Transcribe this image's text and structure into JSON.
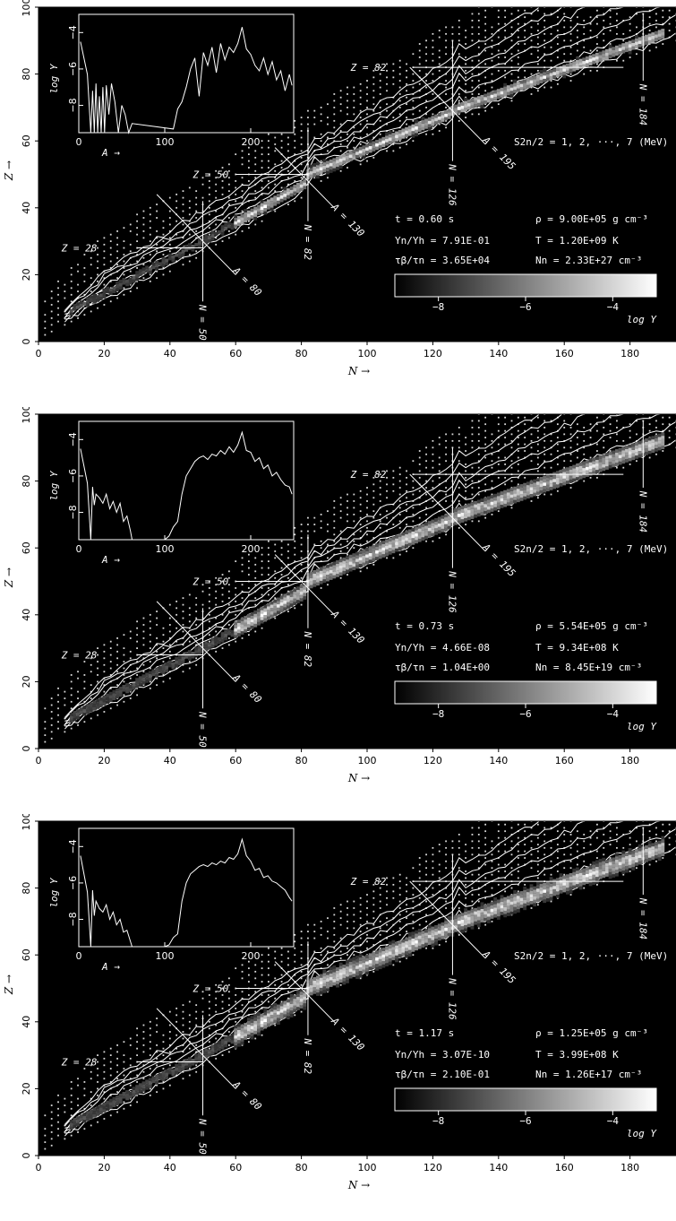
{
  "chart_data": [
    {
      "type": "heatmap",
      "xlabel": "N →",
      "ylabel": "Z →",
      "xlim": [
        0,
        194
      ],
      "ylim": [
        0,
        100
      ],
      "xticks": [
        "0",
        "20",
        "40",
        "60",
        "80",
        "100",
        "120",
        "140",
        "160",
        "180"
      ],
      "yticks": [
        "0",
        "20",
        "40",
        "60",
        "80",
        "100"
      ],
      "magic_labels": [
        "Z = 28",
        "Z = 50",
        "Z = 82",
        "N = 50",
        "N = 82",
        "N = 126",
        "N = 184",
        "A = 80",
        "A = 130",
        "A = 195"
      ],
      "s2n_label": "S2n/2 = 1, 2, ···, 7 (MeV)",
      "colorbar": {
        "label": "log Y",
        "ticks": [
          "−8",
          "−6",
          "−4"
        ],
        "range": [
          -9,
          -3
        ]
      },
      "params": {
        "t": "t = 0.60 s",
        "ratio": "Yn/Yh = 7.91E-01",
        "tau": "τβ/τn = 3.65E+04",
        "rho": "ρ = 9.00E+05 g cm⁻³",
        "T": "T = 1.20E+09 K",
        "Nn": "Nn = 2.33E+27 cm⁻³"
      },
      "abundance_spread": 2,
      "inset": {
        "xlabel": "A →",
        "ylabel": "log Y",
        "xticks": [
          "0",
          "100",
          "200"
        ],
        "yticks": [
          "−4",
          "−6",
          "−8"
        ],
        "xlim": [
          0,
          250
        ],
        "ylim": [
          -9.5,
          -3
        ],
        "A": [
          2,
          10,
          14,
          16,
          18,
          20,
          22,
          24,
          26,
          28,
          30,
          32,
          35,
          38,
          42,
          46,
          50,
          54,
          58,
          62,
          110,
          115,
          120,
          125,
          130,
          135,
          140,
          145,
          150,
          155,
          160,
          165,
          170,
          175,
          180,
          185,
          190,
          195,
          200,
          205,
          210,
          215,
          220,
          225,
          230,
          235,
          240,
          245,
          248
        ],
        "logY": [
          -4.5,
          -6.3,
          -9.5,
          -7.2,
          -9.5,
          -6.8,
          -9.5,
          -7.5,
          -9.5,
          -7.0,
          -9.5,
          -6.9,
          -8.5,
          -6.8,
          -7.8,
          -9.5,
          -8.0,
          -8.5,
          -9.5,
          -9.0,
          -9.3,
          -8.2,
          -7.8,
          -7.0,
          -6.0,
          -5.4,
          -7.5,
          -5.1,
          -5.8,
          -4.8,
          -6.2,
          -4.6,
          -5.5,
          -4.8,
          -5.1,
          -4.6,
          -3.7,
          -4.9,
          -5.2,
          -5.8,
          -6.1,
          -5.4,
          -6.3,
          -5.6,
          -6.6,
          -6.1,
          -7.2,
          -6.3,
          -6.9
        ]
      }
    },
    {
      "type": "heatmap",
      "xlabel": "N →",
      "ylabel": "Z →",
      "xlim": [
        0,
        194
      ],
      "ylim": [
        0,
        100
      ],
      "xticks": [
        "0",
        "20",
        "40",
        "60",
        "80",
        "100",
        "120",
        "140",
        "160",
        "180"
      ],
      "yticks": [
        "0",
        "20",
        "40",
        "60",
        "80",
        "100"
      ],
      "magic_labels": [
        "Z = 28",
        "Z = 50",
        "Z = 82",
        "N = 50",
        "N = 82",
        "N = 126",
        "N = 184",
        "A = 80",
        "A = 130",
        "A = 195"
      ],
      "s2n_label": "S2n/2 = 1, 2, ···, 7 (MeV)",
      "colorbar": {
        "label": "log Y",
        "ticks": [
          "−8",
          "−6",
          "−4"
        ],
        "range": [
          -9,
          -3
        ]
      },
      "params": {
        "t": "t = 0.73 s",
        "ratio": "Yn/Yh = 4.66E-08",
        "tau": "τβ/τn = 1.04E+00",
        "rho": "ρ = 5.54E+05 g cm⁻³",
        "T": "T = 9.34E+08 K",
        "Nn": "Nn = 8.45E+19 cm⁻³"
      },
      "abundance_spread": 4,
      "inset": {
        "xlabel": "A →",
        "ylabel": "log Y",
        "xticks": [
          "0",
          "100",
          "200"
        ],
        "yticks": [
          "−4",
          "−6",
          "−8"
        ],
        "xlim": [
          0,
          250
        ],
        "ylim": [
          -9.5,
          -3
        ],
        "A": [
          2,
          10,
          14,
          16,
          18,
          20,
          24,
          28,
          32,
          36,
          40,
          44,
          48,
          52,
          56,
          60,
          62,
          100,
          105,
          110,
          115,
          120,
          125,
          130,
          135,
          140,
          145,
          150,
          155,
          160,
          165,
          170,
          175,
          180,
          185,
          190,
          195,
          200,
          205,
          210,
          215,
          220,
          225,
          230,
          235,
          240,
          245,
          248
        ],
        "logY": [
          -4.5,
          -6.4,
          -9.5,
          -6.6,
          -7.6,
          -7.0,
          -7.2,
          -7.5,
          -7.0,
          -7.8,
          -7.4,
          -8.0,
          -7.5,
          -8.5,
          -8.2,
          -9.0,
          -9.5,
          -9.5,
          -9.3,
          -8.8,
          -8.5,
          -7.0,
          -6.0,
          -5.6,
          -5.2,
          -5.0,
          -4.9,
          -5.1,
          -4.8,
          -4.9,
          -4.6,
          -4.8,
          -4.4,
          -4.7,
          -4.3,
          -3.6,
          -4.6,
          -4.7,
          -5.2,
          -5.0,
          -5.6,
          -5.4,
          -6.0,
          -5.8,
          -6.2,
          -6.5,
          -6.6,
          -7.0
        ]
      }
    },
    {
      "type": "heatmap",
      "xlabel": "N →",
      "ylabel": "Z →",
      "xlim": [
        0,
        194
      ],
      "ylim": [
        0,
        100
      ],
      "xticks": [
        "0",
        "20",
        "40",
        "60",
        "80",
        "100",
        "120",
        "140",
        "160",
        "180"
      ],
      "yticks": [
        "0",
        "20",
        "40",
        "60",
        "80",
        "100"
      ],
      "magic_labels": [
        "Z = 28",
        "Z = 50",
        "Z = 82",
        "N = 50",
        "N = 82",
        "N = 126",
        "N = 184",
        "A = 80",
        "A = 130",
        "A = 195"
      ],
      "s2n_label": "S2n/2 = 1, 2, ···, 7 (MeV)",
      "colorbar": {
        "label": "log Y",
        "ticks": [
          "−8",
          "−6",
          "−4"
        ],
        "range": [
          -9,
          -3
        ]
      },
      "params": {
        "t": "t = 1.17 s",
        "ratio": "Yn/Yh = 3.07E-10",
        "tau": "τβ/τn = 2.10E-01",
        "rho": "ρ = 1.25E+05 g cm⁻³",
        "T": "T = 3.99E+08 K",
        "Nn": "Nn = 1.26E+17 cm⁻³"
      },
      "abundance_spread": 5,
      "inset": {
        "xlabel": "A →",
        "ylabel": "log Y",
        "xticks": [
          "0",
          "100",
          "200"
        ],
        "yticks": [
          "−4",
          "−6",
          "−8"
        ],
        "xlim": [
          0,
          250
        ],
        "ylim": [
          -9.5,
          -3
        ],
        "A": [
          2,
          10,
          14,
          16,
          18,
          20,
          24,
          28,
          32,
          36,
          40,
          44,
          48,
          52,
          56,
          60,
          62,
          100,
          105,
          110,
          115,
          120,
          125,
          130,
          135,
          140,
          145,
          150,
          155,
          160,
          165,
          170,
          175,
          180,
          185,
          190,
          195,
          200,
          205,
          210,
          215,
          220,
          225,
          230,
          235,
          240,
          245,
          248
        ],
        "logY": [
          -4.5,
          -6.5,
          -9.5,
          -6.4,
          -7.8,
          -7.0,
          -7.4,
          -7.6,
          -7.2,
          -8.0,
          -7.6,
          -8.3,
          -8.0,
          -8.7,
          -8.6,
          -9.2,
          -9.5,
          -9.5,
          -9.4,
          -9.0,
          -8.8,
          -7.0,
          -6.0,
          -5.5,
          -5.3,
          -5.1,
          -5.0,
          -5.1,
          -4.9,
          -5.0,
          -4.8,
          -4.9,
          -4.6,
          -4.7,
          -4.4,
          -3.6,
          -4.5,
          -4.8,
          -5.3,
          -5.2,
          -5.7,
          -5.6,
          -5.9,
          -6.0,
          -6.2,
          -6.4,
          -6.8,
          -7.0
        ]
      }
    }
  ]
}
